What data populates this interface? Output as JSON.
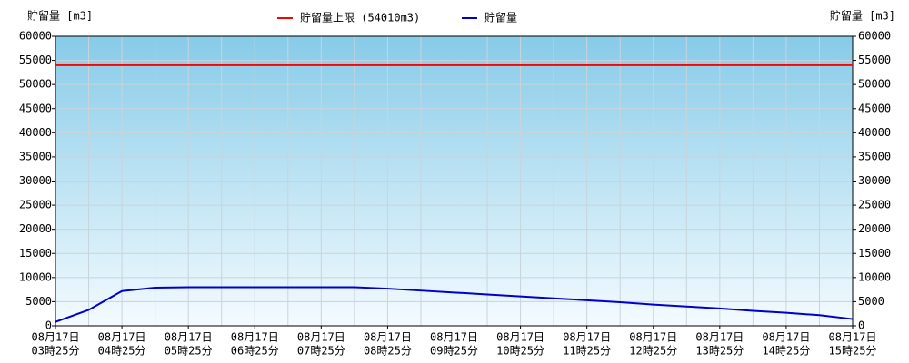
{
  "chart_data": {
    "type": "line",
    "y_label": "貯留量 [m3]",
    "y2_label": "貯留量 [m3]",
    "categories": [
      [
        "08月17日",
        "03時25分"
      ],
      null,
      [
        "08月17日",
        "04時25分"
      ],
      null,
      [
        "08月17日",
        "05時25分"
      ],
      null,
      [
        "08月17日",
        "06時25分"
      ],
      null,
      [
        "08月17日",
        "07時25分"
      ],
      null,
      [
        "08月17日",
        "08時25分"
      ],
      null,
      [
        "08月17日",
        "09時25分"
      ],
      null,
      [
        "08月17日",
        "10時25分"
      ],
      null,
      [
        "08月17日",
        "11時25分"
      ],
      null,
      [
        "08月17日",
        "12時25分"
      ],
      null,
      [
        "08月17日",
        "13時25分"
      ],
      null,
      [
        "08月17日",
        "14時25分"
      ],
      null,
      [
        "08月17日",
        "15時25分"
      ]
    ],
    "series": [
      {
        "name": "貯留量",
        "color": "#0000cc",
        "values": [
          800,
          3300,
          7200,
          7900,
          8000,
          8000,
          8000,
          8000,
          8000,
          8000,
          7700,
          7300,
          6900,
          6500,
          6100,
          5700,
          5300,
          4900,
          4400,
          4000,
          3600,
          3100,
          2700,
          2200,
          1400
        ]
      }
    ],
    "limit": {
      "name": "貯留量上限 (54010m3)",
      "value": 54010,
      "color": "#ff0000"
    },
    "ylim": [
      0,
      60000
    ],
    "yticks": [
      0,
      5000,
      10000,
      15000,
      20000,
      25000,
      30000,
      35000,
      40000,
      45000,
      50000,
      55000,
      60000
    ],
    "y2lim": [
      0,
      60000
    ],
    "y2ticks": [
      0,
      5000,
      10000,
      15000,
      20000,
      25000,
      30000,
      35000,
      40000,
      45000,
      50000,
      55000,
      60000
    ],
    "grid": true
  }
}
